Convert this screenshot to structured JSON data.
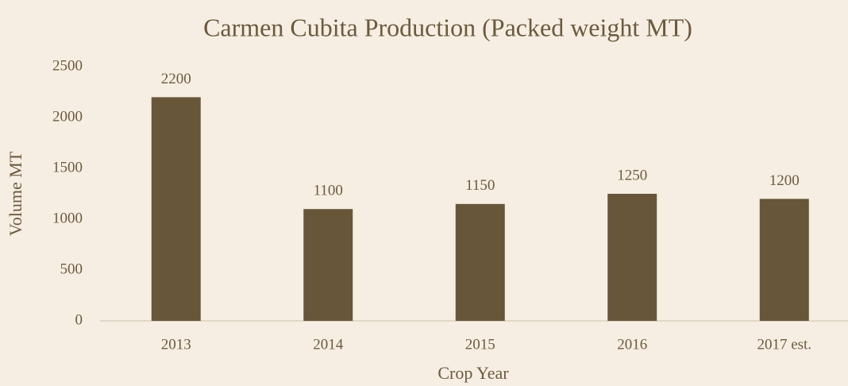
{
  "chart_data": {
    "type": "bar",
    "title": "Carmen Cubita Production (Packed weight MT)",
    "x_label": "Crop Year",
    "y_label": "Volume MT",
    "categories": [
      "2013",
      "2014",
      "2015",
      "2016",
      "2017 est."
    ],
    "values": [
      2200,
      1100,
      1150,
      1250,
      1200
    ],
    "color": "#67563a",
    "ylim": [
      0,
      2500
    ],
    "yticks": [
      0,
      500,
      1000,
      1500,
      2000,
      2500
    ],
    "grid": false
  }
}
